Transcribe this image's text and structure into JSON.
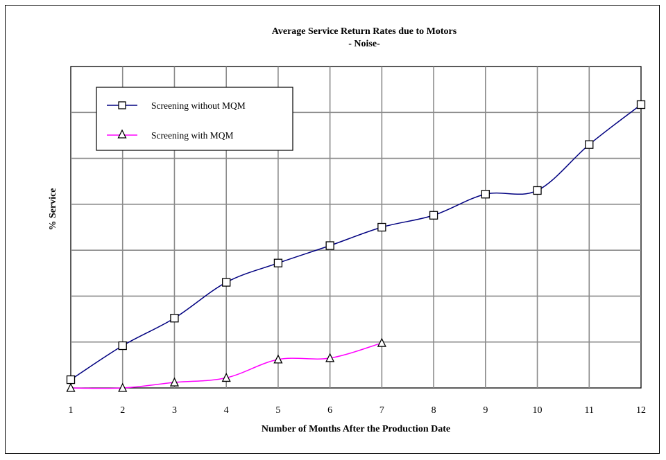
{
  "chart_data": {
    "type": "line",
    "title": "Average Service Return Rates due to Motors",
    "subtitle": "- Noise-",
    "xlabel": "Number of Months After the Production Date",
    "ylabel": "% Service",
    "categories": [
      "1",
      "2",
      "3",
      "4",
      "5",
      "6",
      "7",
      "8",
      "9",
      "10",
      "11",
      "12"
    ],
    "x_range": [
      1,
      12
    ],
    "y_range": [
      0,
      7
    ],
    "grid": true,
    "legend_position": "top-left",
    "series": [
      {
        "name": "Screening without MQM",
        "color": "#000080",
        "marker": "square",
        "x": [
          1,
          2,
          3,
          4,
          5,
          6,
          7,
          8,
          9,
          10,
          11,
          12
        ],
        "values": [
          0.18,
          0.92,
          1.52,
          2.3,
          2.72,
          3.1,
          3.5,
          3.76,
          4.22,
          4.3,
          5.3,
          6.17
        ]
      },
      {
        "name": "Screening with MQM",
        "color": "#ff00ff",
        "marker": "triangle",
        "x": [
          1,
          2,
          3,
          4,
          5,
          6,
          7
        ],
        "values": [
          0.0,
          0.0,
          0.12,
          0.22,
          0.62,
          0.65,
          0.98
        ]
      }
    ]
  }
}
